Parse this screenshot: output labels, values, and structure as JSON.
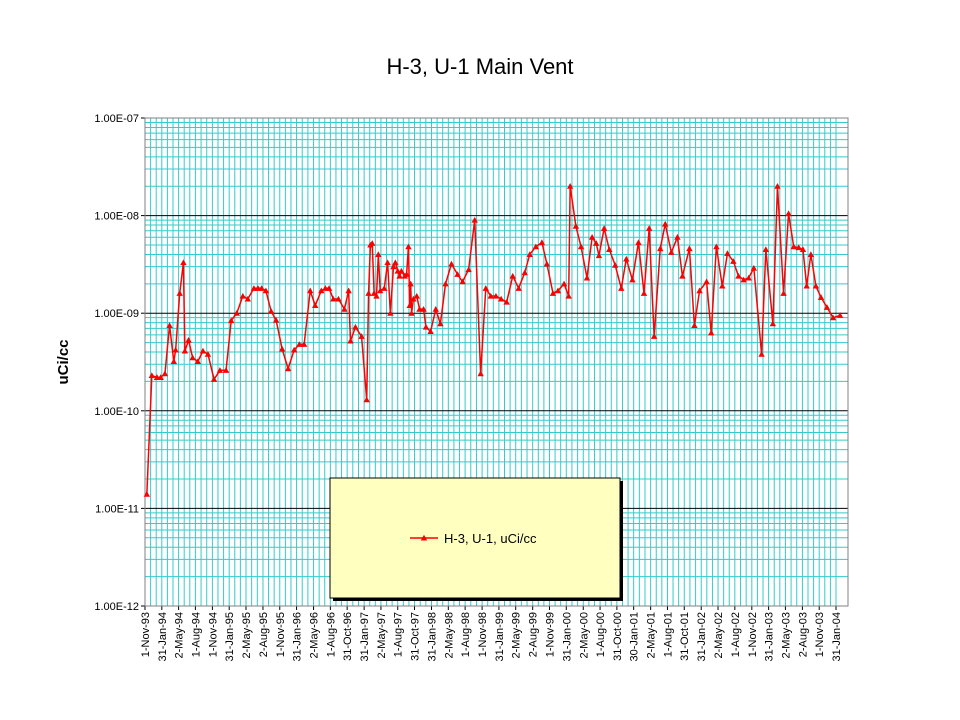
{
  "chart_data": {
    "type": "line",
    "title": "H-3, U-1 Main Vent",
    "y_label": "uCi/cc",
    "yscale": "log",
    "grid": true,
    "legend": "bottom-center",
    "ylim": [
      1e-12,
      1e-07
    ],
    "yticks": [
      {
        "value": 1e-12,
        "label": "1.00E-12"
      },
      {
        "value": 1e-11,
        "label": "1.00E-11"
      },
      {
        "value": 1e-10,
        "label": "1.00E-10"
      },
      {
        "value": 1e-09,
        "label": "1.00E-09"
      },
      {
        "value": 1e-08,
        "label": "1.00E-08"
      },
      {
        "value": 1e-07,
        "label": "1.00E-07"
      }
    ],
    "xlim": [
      "1993-11-01",
      "2004-04-05"
    ],
    "xticks": [
      {
        "value": "1993-11-01",
        "label": "1-Nov-93"
      },
      {
        "value": "1994-01-31",
        "label": "31-Jan-94"
      },
      {
        "value": "1994-05-02",
        "label": "2-May-94"
      },
      {
        "value": "1994-08-01",
        "label": "1-Aug-94"
      },
      {
        "value": "1994-11-01",
        "label": "1-Nov-94"
      },
      {
        "value": "1995-01-31",
        "label": "31-Jan-95"
      },
      {
        "value": "1995-05-02",
        "label": "2-May-95"
      },
      {
        "value": "1995-08-02",
        "label": "2-Aug-95"
      },
      {
        "value": "1995-11-01",
        "label": "1-Nov-95"
      },
      {
        "value": "1996-01-31",
        "label": "31-Jan-96"
      },
      {
        "value": "1996-05-02",
        "label": "2-May-96"
      },
      {
        "value": "1996-08-01",
        "label": "1-Aug-96"
      },
      {
        "value": "1996-10-31",
        "label": "31-Oct-96"
      },
      {
        "value": "1997-01-31",
        "label": "31-Jan-97"
      },
      {
        "value": "1997-05-02",
        "label": "2-May-97"
      },
      {
        "value": "1997-08-01",
        "label": "1-Aug-97"
      },
      {
        "value": "1997-10-31",
        "label": "31-Oct-97"
      },
      {
        "value": "1998-01-31",
        "label": "31-Jan-98"
      },
      {
        "value": "1998-05-02",
        "label": "2-May-98"
      },
      {
        "value": "1998-08-01",
        "label": "1-Aug-98"
      },
      {
        "value": "1998-11-01",
        "label": "1-Nov-98"
      },
      {
        "value": "1999-01-31",
        "label": "31-Jan-99"
      },
      {
        "value": "1999-05-02",
        "label": "2-May-99"
      },
      {
        "value": "1999-08-02",
        "label": "2-Aug-99"
      },
      {
        "value": "1999-11-01",
        "label": "1-Nov-99"
      },
      {
        "value": "2000-01-31",
        "label": "31-Jan-00"
      },
      {
        "value": "2000-05-02",
        "label": "2-May-00"
      },
      {
        "value": "2000-08-01",
        "label": "1-Aug-00"
      },
      {
        "value": "2000-10-31",
        "label": "31-Oct-00"
      },
      {
        "value": "2001-01-30",
        "label": "30-Jan-01"
      },
      {
        "value": "2001-05-02",
        "label": "2-May-01"
      },
      {
        "value": "2001-08-01",
        "label": "1-Aug-01"
      },
      {
        "value": "2001-10-31",
        "label": "31-Oct-01"
      },
      {
        "value": "2002-01-31",
        "label": "31-Jan-02"
      },
      {
        "value": "2002-05-02",
        "label": "2-May-02"
      },
      {
        "value": "2002-08-01",
        "label": "1-Aug-02"
      },
      {
        "value": "2002-11-01",
        "label": "1-Nov-02"
      },
      {
        "value": "2003-01-31",
        "label": "31-Jan-03"
      },
      {
        "value": "2003-05-02",
        "label": "2-May-03"
      },
      {
        "value": "2003-08-02",
        "label": "2-Aug-03"
      },
      {
        "value": "2003-11-01",
        "label": "1-Nov-03"
      },
      {
        "value": "2004-01-31",
        "label": "31-Jan-04"
      }
    ],
    "x": [
      "1993-11-11",
      "1993-12-08",
      "1994-01-05",
      "1994-01-25",
      "1994-02-17",
      "1994-03-14",
      "1994-04-06",
      "1994-04-16",
      "1994-05-08",
      "1994-05-28",
      "1994-06-05",
      "1994-06-25",
      "1994-07-17",
      "1994-08-14",
      "1994-09-11",
      "1994-10-08",
      "1994-11-10",
      "1994-12-12",
      "1995-01-14",
      "1995-02-11",
      "1995-03-13",
      "1995-04-15",
      "1995-05-12",
      "1995-06-14",
      "1995-07-06",
      "1995-07-26",
      "1995-08-18",
      "1995-09-15",
      "1995-10-12",
      "1995-11-14",
      "1995-12-16",
      "1996-01-18",
      "1996-02-15",
      "1996-03-12",
      "1996-04-14",
      "1996-05-11",
      "1996-06-13",
      "1996-07-05",
      "1996-07-25",
      "1996-08-17",
      "1996-09-14",
      "1996-10-16",
      "1996-11-08",
      "1996-11-18",
      "1996-12-15",
      "1997-01-17",
      "1997-02-14",
      "1997-02-24",
      "1997-03-06",
      "1997-03-16",
      "1997-03-26",
      "1997-04-08",
      "1997-04-18",
      "1997-04-28",
      "1997-05-20",
      "1997-06-07",
      "1997-06-22",
      "1997-07-09",
      "1997-07-19",
      "1997-08-01",
      "1997-08-11",
      "1997-08-21",
      "1997-09-08",
      "1997-09-18",
      "1997-09-28",
      "1997-10-05",
      "1997-10-10",
      "1997-10-15",
      "1997-10-25",
      "1997-11-12",
      "1997-11-27",
      "1997-12-19",
      "1998-01-01",
      "1998-01-26",
      "1998-02-23",
      "1998-03-20",
      "1998-04-17",
      "1998-05-19",
      "1998-06-21",
      "1998-07-18",
      "1998-08-20",
      "1998-09-22",
      "1998-10-24",
      "1998-11-21",
      "1998-12-18",
      "1999-01-15",
      "1999-02-12",
      "1999-03-14",
      "1999-04-16",
      "1999-05-18",
      "1999-06-20",
      "1999-07-17",
      "1999-08-19",
      "1999-09-21",
      "1999-10-18",
      "1999-11-20",
      "1999-12-17",
      "2000-01-19",
      "2000-02-13",
      "2000-02-21",
      "2000-03-23",
      "2000-04-20",
      "2000-05-22",
      "2000-06-19",
      "2000-07-11",
      "2000-07-26",
      "2000-08-23",
      "2000-09-20",
      "2000-10-22",
      "2000-11-24",
      "2000-12-21",
      "2001-01-23",
      "2001-02-25",
      "2001-03-27",
      "2001-04-24",
      "2001-05-21",
      "2001-06-23",
      "2001-07-20",
      "2001-08-22",
      "2001-09-24",
      "2001-10-21",
      "2001-11-28",
      "2001-12-25",
      "2002-01-22",
      "2002-03-01",
      "2002-03-26",
      "2002-04-23",
      "2002-05-25",
      "2002-06-22",
      "2002-07-24",
      "2002-08-21",
      "2002-09-18",
      "2002-10-15",
      "2002-11-12",
      "2002-12-24",
      "2003-01-16",
      "2003-02-23",
      "2003-03-20",
      "2003-04-22",
      "2003-05-19",
      "2003-06-16",
      "2003-07-13",
      "2003-08-05",
      "2003-08-25",
      "2003-09-17",
      "2003-10-14",
      "2003-11-11",
      "2003-12-13",
      "2004-01-15",
      "2004-02-22"
    ],
    "series": [
      {
        "name": "H-3, U-1, uCi/cc",
        "color": "#ff0000",
        "values": [
          1.4e-11,
          2.3e-10,
          2.2e-10,
          2.2e-10,
          2.4e-10,
          7.5e-10,
          3.2e-10,
          4.2e-10,
          1.6e-09,
          3.3e-09,
          4.1e-10,
          5.3e-10,
          3.5e-10,
          3.2e-10,
          4.1e-10,
          3.8e-10,
          2.1e-10,
          2.6e-10,
          2.6e-10,
          8.4e-10,
          1e-09,
          1.5e-09,
          1.4e-09,
          1.8e-09,
          1.8e-09,
          1.8e-09,
          1.7e-09,
          1.05e-09,
          8.5e-10,
          4.3e-10,
          2.7e-10,
          4.2e-10,
          4.8e-10,
          4.8e-10,
          1.7e-09,
          1.2e-09,
          1.7e-09,
          1.8e-09,
          1.8e-09,
          1.4e-09,
          1.4e-09,
          1.1e-09,
          1.7e-09,
          5.2e-10,
          7.2e-10,
          5.8e-10,
          1.3e-10,
          1.6e-09,
          5e-09,
          5.2e-09,
          1.6e-09,
          1.5e-09,
          4e-09,
          1.7e-09,
          1.8e-09,
          3.3e-09,
          1e-09,
          3e-09,
          3.3e-09,
          2.7e-09,
          2.4e-09,
          2.7e-09,
          2.4e-09,
          2.5e-09,
          4.8e-09,
          1.2e-09,
          2e-09,
          1e-09,
          1.4e-09,
          1.5e-09,
          1.1e-09,
          1.1e-09,
          7.2e-10,
          6.5e-10,
          1.1e-09,
          7.8e-10,
          2e-09,
          3.2e-09,
          2.5e-09,
          2.1e-09,
          2.8e-09,
          9e-09,
          2.4e-10,
          1.8e-09,
          1.5e-09,
          1.5e-09,
          1.4e-09,
          1.3e-09,
          2.4e-09,
          1.8e-09,
          2.6e-09,
          4e-09,
          4.8e-09,
          5.3e-09,
          3.2e-09,
          1.6e-09,
          1.7e-09,
          2e-09,
          1.5e-09,
          2e-08,
          7.8e-09,
          4.8e-09,
          2.3e-09,
          6e-09,
          5.2e-09,
          3.9e-09,
          7.4e-09,
          4.5e-09,
          3.1e-09,
          1.8e-09,
          3.6e-09,
          2.2e-09,
          5.3e-09,
          1.6e-09,
          7.4e-09,
          5.8e-10,
          4.6e-09,
          8.2e-09,
          4.2e-09,
          6e-09,
          2.4e-09,
          4.6e-09,
          7.5e-10,
          1.7e-09,
          2.1e-09,
          6.3e-10,
          4.8e-09,
          1.9e-09,
          4.1e-09,
          3.4e-09,
          2.4e-09,
          2.2e-09,
          2.3e-09,
          2.9e-09,
          3.8e-10,
          4.5e-09,
          7.8e-10,
          2e-08,
          1.6e-09,
          1.05e-08,
          4.8e-09,
          4.7e-09,
          4.5e-09,
          1.9e-09,
          4e-09,
          1.9e-09,
          1.45e-09,
          1.15e-09,
          9e-10,
          9.5e-10
        ]
      }
    ]
  }
}
